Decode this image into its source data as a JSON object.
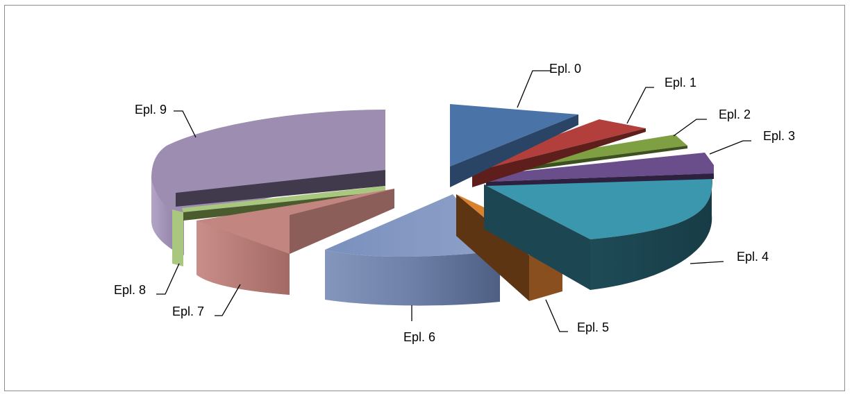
{
  "chart_data": {
    "type": "pie",
    "style": "3d-exploded",
    "title": "",
    "categories": [
      "Epl. 0",
      "Epl. 1",
      "Epl. 2",
      "Epl. 3",
      "Epl. 4",
      "Epl. 5",
      "Epl. 6",
      "Epl. 7",
      "Epl. 8",
      "Epl. 9"
    ],
    "values": [
      9.3,
      4.4,
      3.5,
      4.7,
      19.9,
      4.2,
      13.6,
      11.5,
      2.4,
      26.5
    ],
    "value_unit": "percent (estimated)",
    "colors": [
      "#4a74a8",
      "#b23f3c",
      "#7fa042",
      "#6a4e8b",
      "#3a97ad",
      "#d8812e",
      "#8b9dc3",
      "#c38580",
      "#a9c77f",
      "#a08fb6"
    ],
    "legend": "none",
    "data_labels": "outside-with-leader-lines"
  }
}
